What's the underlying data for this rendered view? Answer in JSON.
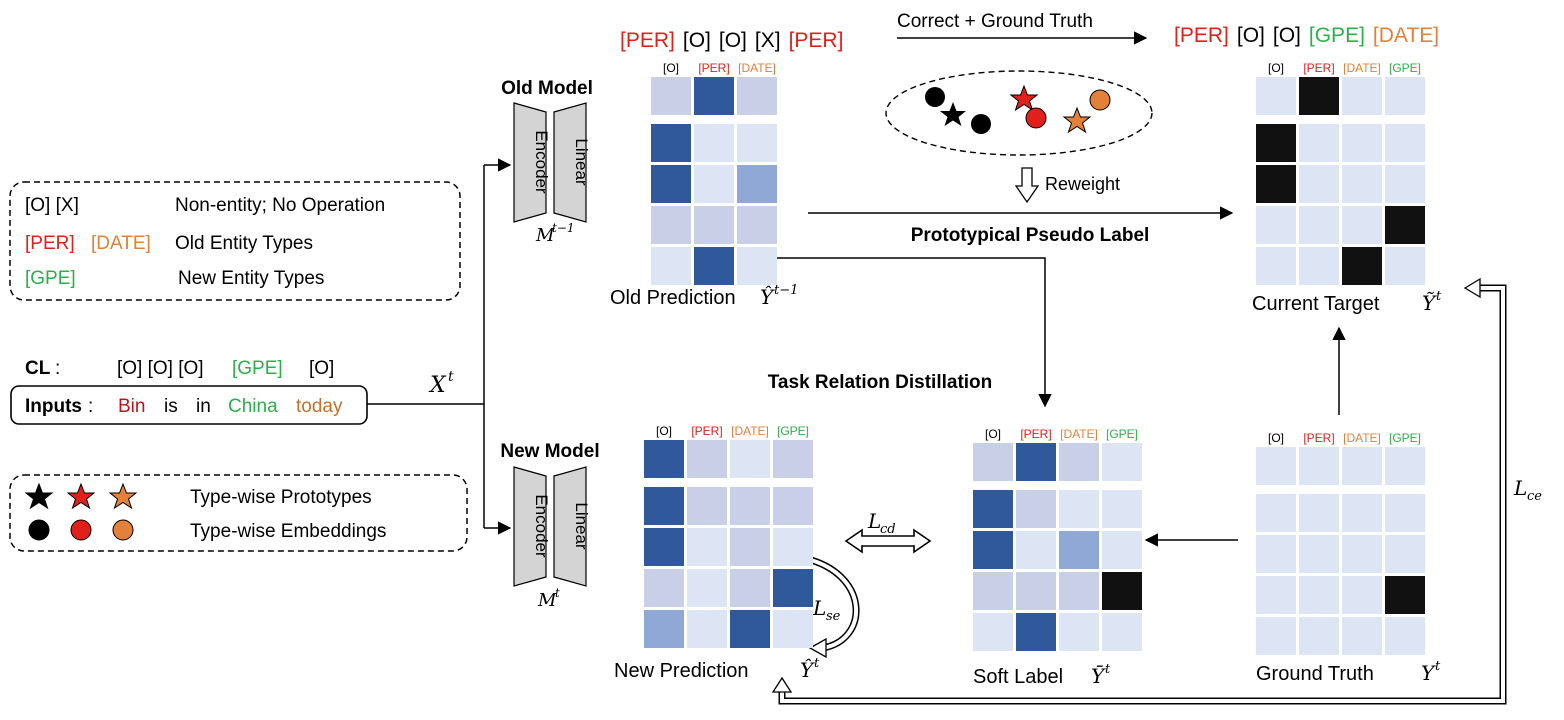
{
  "colors": {
    "red": "#e0201b",
    "orange": "#e3803a",
    "green": "#2bb04a",
    "dark_red": "#c0141b",
    "brown": "#c07030",
    "cell_light": "#dbe4f4",
    "cell_dark": "#30599c",
    "cell_black": "#111111"
  },
  "legend_types": {
    "o_x": "[O]  [X]",
    "non_entity": "Non-entity; No Operation",
    "per": "[PER]",
    "date": "[DATE]",
    "old_types": "Old Entity Types",
    "gpe": "[GPE]",
    "new_types": "New Entity Types"
  },
  "cl_row": {
    "label": "CL",
    "colon": ":",
    "o_tags": "[O] [O] [O]",
    "gpe": "[GPE]",
    "o_last": "[O]"
  },
  "inputs": {
    "label": "Inputs",
    "colon": ":",
    "w1": "Bin",
    "w2": "is",
    "w3": "in",
    "w4": "China",
    "w5": "today"
  },
  "x_t": "X",
  "x_t_sup": "t",
  "legend_proto": {
    "prototypes": "Type-wise Prototypes",
    "embeddings": "Type-wise Embeddings"
  },
  "old_model": {
    "title": "Old Model",
    "encoder": "Encoder",
    "linear": "Linear",
    "symbol": "M",
    "sup": "t−1"
  },
  "new_model": {
    "title": "New Model",
    "encoder": "Encoder",
    "linear": "Linear",
    "symbol": "M",
    "sup": "t"
  },
  "old_pred_seq": [
    "[PER]",
    "[O]",
    "[O]",
    "[X]",
    "[PER]"
  ],
  "target_seq": [
    "[PER]",
    "[O]",
    "[O]",
    "[GPE]",
    "[DATE]"
  ],
  "correct_label": "Correct + Ground Truth",
  "reweight_label": "Reweight",
  "ppl_label": "Prototypical Pseudo Label",
  "trd_label": "Task Relation Distillation",
  "old_prediction": {
    "caption": "Old Prediction",
    "sym": "Ŷ",
    "sup": "t−1",
    "headers": [
      "[O]",
      "[PER]",
      "[DATE]"
    ],
    "grid": [
      [
        1,
        3,
        1
      ],
      [
        3,
        0,
        0
      ],
      [
        3,
        0,
        2
      ],
      [
        1,
        1,
        1
      ],
      [
        0,
        3,
        0
      ]
    ]
  },
  "current_target": {
    "caption": "Current Target",
    "sym": "Ỹ",
    "sup": "t",
    "headers": [
      "[O]",
      "[PER]",
      "[DATE]",
      "[GPE]"
    ],
    "grid": [
      [
        0,
        9,
        0,
        0
      ],
      [
        9,
        0,
        0,
        0
      ],
      [
        9,
        0,
        0,
        0
      ],
      [
        0,
        0,
        0,
        9
      ],
      [
        0,
        0,
        9,
        0
      ]
    ]
  },
  "new_prediction": {
    "caption": "New Prediction",
    "sym": "Ŷ",
    "sup": "t",
    "headers": [
      "[O]",
      "[PER]",
      "[DATE]",
      "[GPE]"
    ],
    "grid": [
      [
        3,
        1,
        0,
        1
      ],
      [
        3,
        1,
        1,
        1
      ],
      [
        3,
        0,
        1,
        0
      ],
      [
        1,
        0,
        1,
        3
      ],
      [
        2,
        0,
        3,
        0
      ]
    ]
  },
  "soft_label": {
    "caption": "Soft Label",
    "sym": "Ȳ",
    "sup": "t",
    "headers": [
      "[O]",
      "[PER]",
      "[DATE]",
      "[GPE]"
    ],
    "grid": [
      [
        1,
        3,
        1,
        0
      ],
      [
        3,
        1,
        0,
        0
      ],
      [
        3,
        0,
        2,
        0
      ],
      [
        1,
        1,
        1,
        9
      ],
      [
        0,
        3,
        0,
        0
      ]
    ]
  },
  "ground_truth": {
    "caption": "Ground Truth",
    "sym": "Y",
    "sup": "t",
    "headers": [
      "[O]",
      "[PER]",
      "[DATE]",
      "[GPE]"
    ],
    "grid": [
      [
        0,
        0,
        0,
        0
      ],
      [
        0,
        0,
        0,
        0
      ],
      [
        0,
        0,
        0,
        0
      ],
      [
        0,
        0,
        0,
        9
      ],
      [
        0,
        0,
        0,
        0
      ]
    ]
  },
  "loss_cd": {
    "sym": "L",
    "sub": "cd"
  },
  "loss_se": {
    "sym": "L",
    "sub": "se"
  },
  "loss_ce": {
    "sym": "L",
    "sub": "ce"
  }
}
